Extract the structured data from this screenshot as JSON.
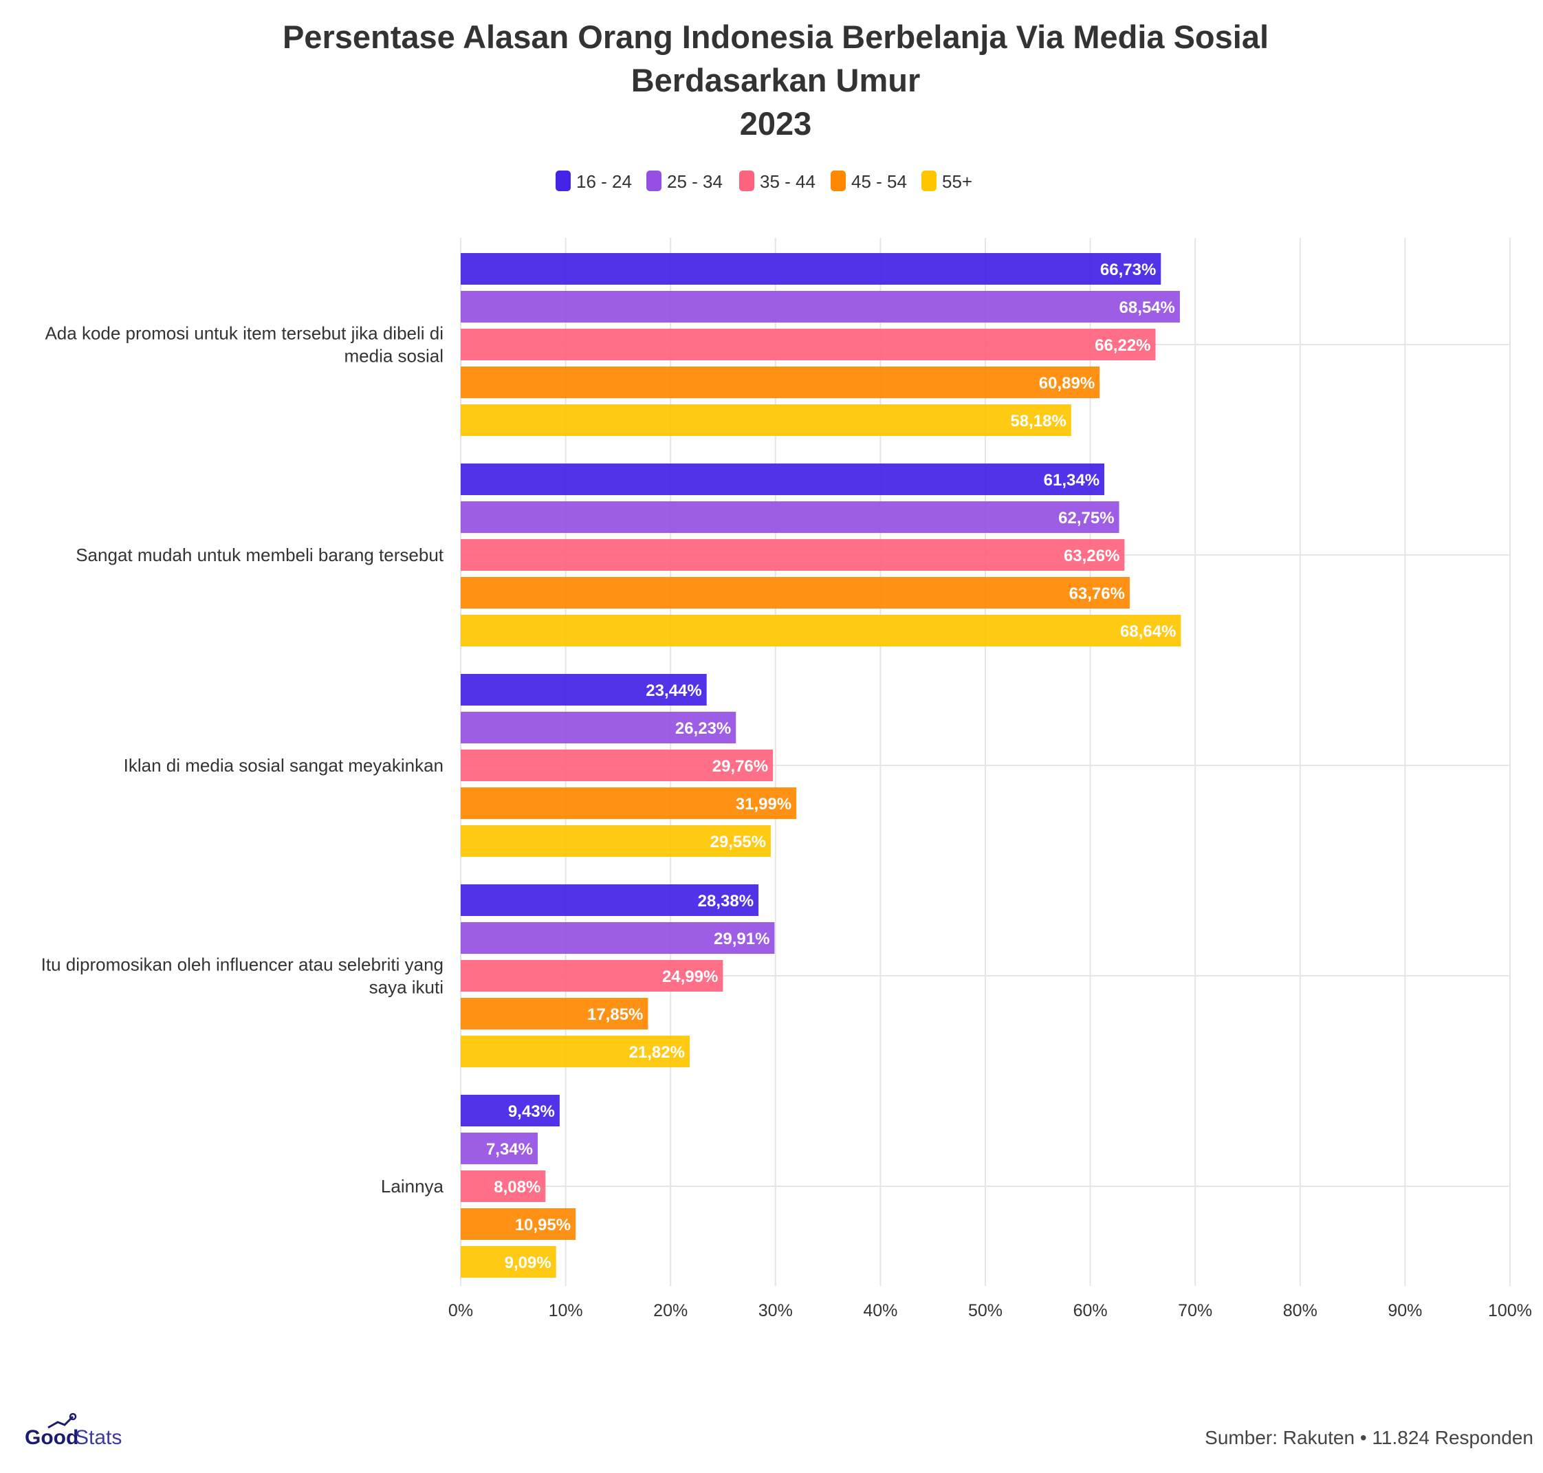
{
  "chart_data": {
    "type": "bar",
    "orientation": "horizontal",
    "title_lines": [
      "Persentase Alasan Orang Indonesia Berbelanja Via Media Sosial",
      "Berdasarkan Umur",
      "2023"
    ],
    "categories": [
      [
        "Ada kode promosi untuk item tersebut jika dibeli di",
        "media sosial"
      ],
      [
        "Sangat mudah untuk membeli barang tersebut"
      ],
      [
        "Iklan di media sosial sangat meyakinkan"
      ],
      [
        "Itu dipromosikan oleh influencer atau selebriti yang",
        "saya ikuti"
      ],
      [
        "Lainnya"
      ]
    ],
    "series": [
      {
        "name": "16 - 24",
        "color": "#4422e6",
        "values": [
          66.73,
          61.34,
          23.44,
          28.38,
          9.43
        ],
        "labels": [
          "66,73%",
          "61,34%",
          "23,44%",
          "28,38%",
          "9,43%"
        ]
      },
      {
        "name": "25 - 34",
        "color": "#9550e3",
        "values": [
          68.54,
          62.75,
          26.23,
          29.91,
          7.34
        ],
        "labels": [
          "68,54%",
          "62,75%",
          "26,23%",
          "29,91%",
          "7,34%"
        ]
      },
      {
        "name": "35 - 44",
        "color": "#ff637d",
        "values": [
          66.22,
          63.26,
          29.76,
          24.99,
          8.08
        ],
        "labels": [
          "66,22%",
          "63,26%",
          "29,76%",
          "24,99%",
          "8,08%"
        ]
      },
      {
        "name": "45 - 54",
        "color": "#ff8800",
        "values": [
          60.89,
          63.76,
          31.99,
          17.85,
          10.95
        ],
        "labels": [
          "60,89%",
          "63,76%",
          "31,99%",
          "17,85%",
          "10,95%"
        ]
      },
      {
        "name": "55+",
        "color": "#ffc600",
        "values": [
          58.18,
          68.64,
          29.55,
          21.82,
          9.09
        ],
        "labels": [
          "58,18%",
          "68,64%",
          "29,55%",
          "21,82%",
          "9,09%"
        ]
      }
    ],
    "xlim": [
      0,
      100
    ],
    "x_ticks": [
      0,
      10,
      20,
      30,
      40,
      50,
      60,
      70,
      80,
      90,
      100
    ],
    "x_tick_labels": [
      "0%",
      "10%",
      "20%",
      "30%",
      "40%",
      "50%",
      "60%",
      "70%",
      "80%",
      "90%",
      "100%"
    ],
    "grid": true,
    "legend_position": "top-center"
  },
  "footer": {
    "source": "Sumber: Rakuten • 11.824 Responden",
    "logo_good": "Good",
    "logo_stats": "Stats"
  }
}
